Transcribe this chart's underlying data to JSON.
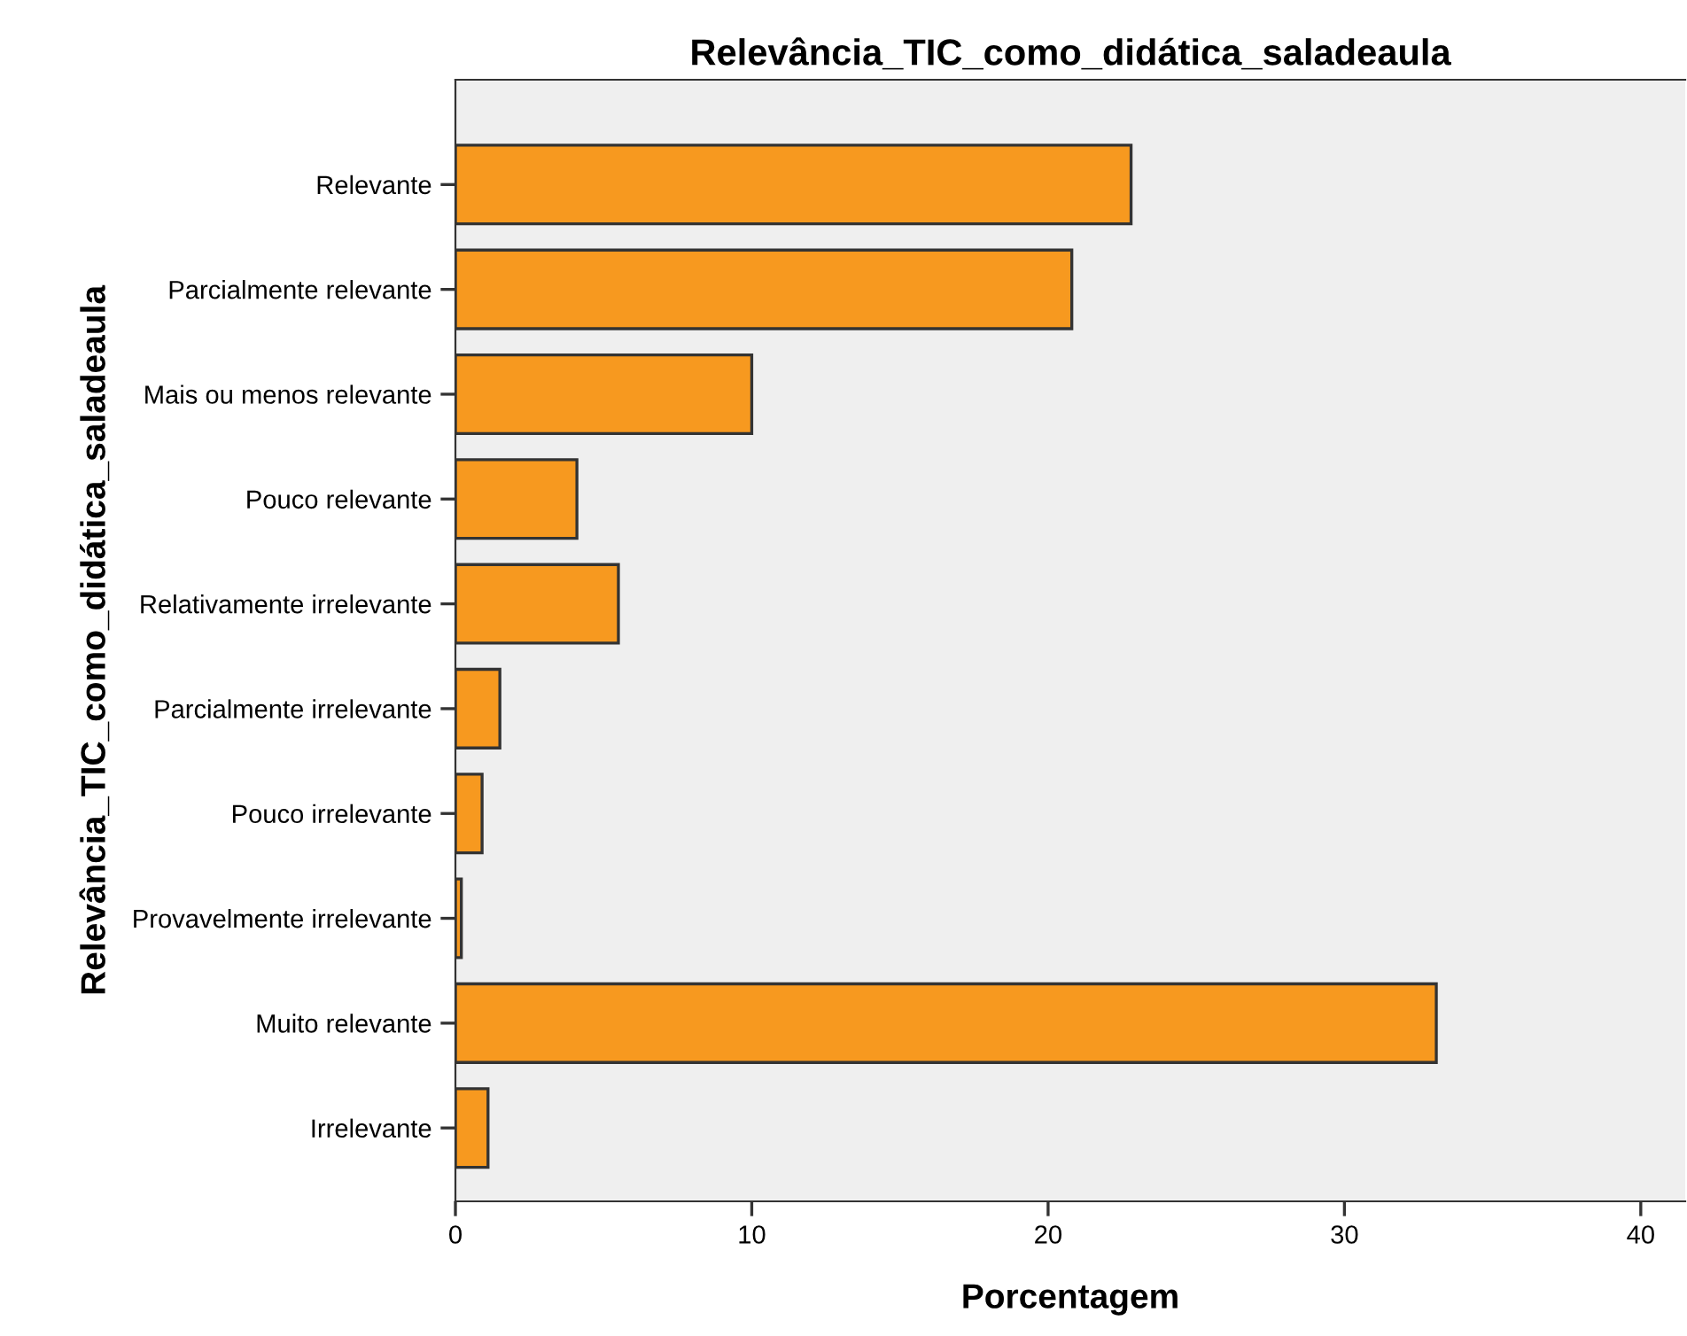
{
  "chart_data": {
    "type": "bar",
    "orientation": "horizontal",
    "title": "Relevância_TIC_como_didática_saladeaula",
    "xlabel": "Porcentagem",
    "ylabel": "Relevância_TIC_como_didática_saladeaula",
    "categories": [
      "Relevante",
      "Parcialmente relevante",
      "Mais ou menos relevante",
      "Pouco relevante",
      "Relativamente irrelevante",
      "Parcialmente irrelevante",
      "Pouco irrelevante",
      "Provavelmente irrelevante",
      "Muito relevante",
      "Irrelevante"
    ],
    "values": [
      22.8,
      20.8,
      10.0,
      4.1,
      5.5,
      1.5,
      0.9,
      0.2,
      33.1,
      1.1
    ],
    "color": "#f7991f",
    "xlim": [
      0,
      41.5
    ],
    "xticks": [
      0,
      10,
      20,
      30,
      40
    ],
    "grid": false,
    "legend": false
  }
}
